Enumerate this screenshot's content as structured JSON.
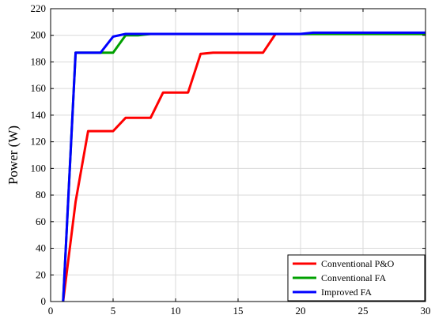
{
  "chart_data": {
    "type": "line",
    "title": "",
    "xlabel": "",
    "ylabel": "Power (W)",
    "xlim": [
      0,
      30
    ],
    "ylim": [
      0,
      220
    ],
    "xticks": [
      0,
      5,
      10,
      15,
      20,
      25,
      30
    ],
    "yticks": [
      0,
      20,
      40,
      60,
      80,
      100,
      120,
      140,
      160,
      180,
      200,
      220
    ],
    "grid": true,
    "legend_position": "bottom-right",
    "series": [
      {
        "name": "Conventional P&O",
        "color": "#ff0000",
        "points": [
          [
            1,
            0
          ],
          [
            2,
            75
          ],
          [
            3,
            128
          ],
          [
            4,
            128
          ],
          [
            5,
            128
          ],
          [
            6,
            138
          ],
          [
            7,
            138
          ],
          [
            8,
            138
          ],
          [
            9,
            157
          ],
          [
            10,
            157
          ],
          [
            11,
            157
          ],
          [
            12,
            186
          ],
          [
            13,
            187
          ],
          [
            14,
            187
          ],
          [
            15,
            187
          ],
          [
            16,
            187
          ],
          [
            17,
            187
          ],
          [
            18,
            201
          ],
          [
            19,
            201
          ],
          [
            20,
            201
          ],
          [
            21,
            201
          ],
          [
            22,
            201
          ],
          [
            25,
            201
          ],
          [
            30,
            201
          ]
        ]
      },
      {
        "name": "Conventional FA",
        "color": "#00a000",
        "points": [
          [
            1,
            0
          ],
          [
            2,
            187
          ],
          [
            3,
            187
          ],
          [
            4,
            187
          ],
          [
            5,
            187
          ],
          [
            6,
            200
          ],
          [
            7,
            200
          ],
          [
            8,
            201
          ],
          [
            10,
            201
          ],
          [
            15,
            201
          ],
          [
            20,
            201
          ],
          [
            25,
            201
          ],
          [
            30,
            201
          ]
        ]
      },
      {
        "name": "Improved FA",
        "color": "#0000ff",
        "points": [
          [
            1,
            0
          ],
          [
            2,
            187
          ],
          [
            3,
            187
          ],
          [
            4,
            187
          ],
          [
            5,
            199
          ],
          [
            6,
            201
          ],
          [
            7,
            201
          ],
          [
            8,
            201
          ],
          [
            10,
            201
          ],
          [
            15,
            201
          ],
          [
            20,
            201
          ],
          [
            21,
            202
          ],
          [
            25,
            202
          ],
          [
            30,
            202
          ]
        ]
      }
    ]
  }
}
